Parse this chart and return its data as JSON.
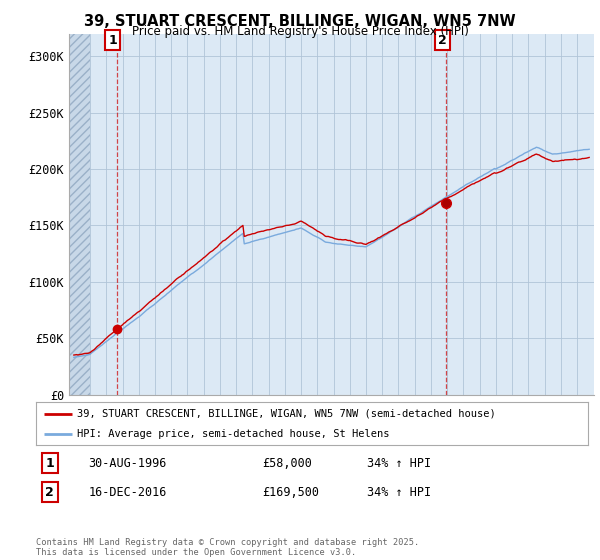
{
  "title_line1": "39, STUART CRESCENT, BILLINGE, WIGAN, WN5 7NW",
  "title_line2": "Price paid vs. HM Land Registry's House Price Index (HPI)",
  "background_color": "#ffffff",
  "plot_bg_color": "#dce9f5",
  "hatch_bg_color": "#c8d8e8",
  "red_color": "#cc0000",
  "blue_color": "#7aaadd",
  "ylim": [
    0,
    320000
  ],
  "yticks": [
    0,
    50000,
    100000,
    150000,
    200000,
    250000,
    300000
  ],
  "ytick_labels": [
    "£0",
    "£50K",
    "£100K",
    "£150K",
    "£200K",
    "£250K",
    "£300K"
  ],
  "legend_label_red": "39, STUART CRESCENT, BILLINGE, WIGAN, WN5 7NW (semi-detached house)",
  "legend_label_blue": "HPI: Average price, semi-detached house, St Helens",
  "ann1_x": 1996.67,
  "ann1_y": 58000,
  "ann2_x": 2016.96,
  "ann2_y": 169500,
  "footer": "Contains HM Land Registry data © Crown copyright and database right 2025.\nThis data is licensed under the Open Government Licence v3.0.",
  "xmin": 1994.0,
  "xmax": 2025.75
}
